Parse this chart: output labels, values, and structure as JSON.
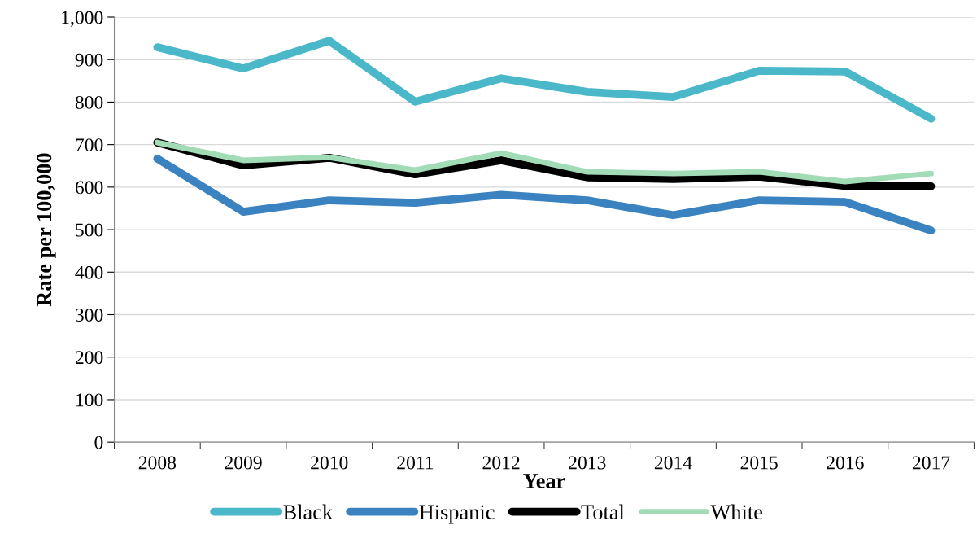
{
  "chart_data": {
    "type": "line",
    "xlabel": "Year",
    "ylabel": "Rate per 100,000",
    "categories": [
      "2008",
      "2009",
      "2010",
      "2011",
      "2012",
      "2013",
      "2014",
      "2015",
      "2016",
      "2017"
    ],
    "series": [
      {
        "name": "Black",
        "color": "#4ab8c8",
        "values": [
          929,
          879,
          944,
          801,
          856,
          824,
          812,
          874,
          872,
          761
        ]
      },
      {
        "name": "Hispanic",
        "color": "#3a82c0",
        "values": [
          667,
          542,
          569,
          563,
          582,
          569,
          534,
          569,
          565,
          498
        ]
      },
      {
        "name": "Total",
        "color": "#000000",
        "values": [
          705,
          651,
          669,
          630,
          663,
          623,
          619,
          625,
          603,
          602
        ]
      },
      {
        "name": "White",
        "color": "#a2dcb6",
        "values": [
          705,
          663,
          670,
          640,
          680,
          636,
          632,
          636,
          613,
          632
        ]
      }
    ],
    "ylim": [
      0,
      1000
    ],
    "yticks": [
      0,
      {
        "value": 100,
        "label": "100"
      },
      200,
      300,
      400,
      500,
      600,
      700,
      800,
      900,
      {
        "value": 1000,
        "label": "1,000"
      }
    ],
    "grid": "y",
    "legend": "bottom",
    "marker": "none",
    "line_style": "solid"
  }
}
